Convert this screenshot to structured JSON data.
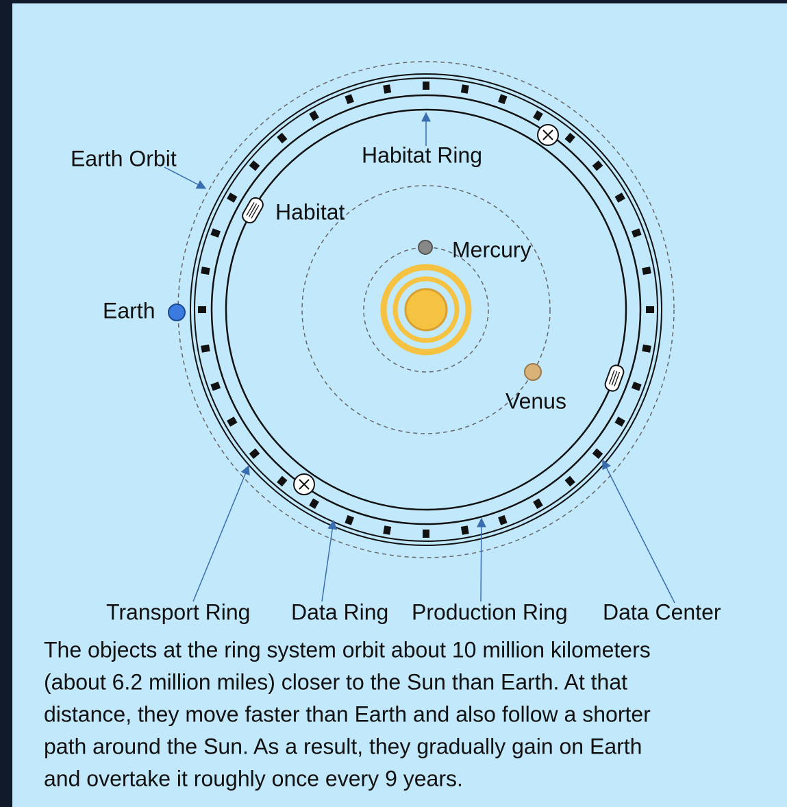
{
  "labels": {
    "earth_orbit": "Earth Orbit",
    "habitat_ring": "Habitat Ring",
    "habitat": "Habitat",
    "mercury": "Mercury",
    "earth": "Earth",
    "venus": "Venus",
    "transport_ring": "Transport Ring",
    "data_ring": "Data Ring",
    "production_ring": "Production Ring",
    "data_center": "Data Center"
  },
  "paragraph": [
    "The objects at the ring system orbit about 10 million kilometers",
    "(about 6.2 million miles) closer to the Sun than Earth. At that",
    "distance, they move faster than Earth and also follow a shorter",
    "path around the Sun. As a result, they gradually gain on Earth",
    "and overtake it roughly once every 9 years."
  ]
}
